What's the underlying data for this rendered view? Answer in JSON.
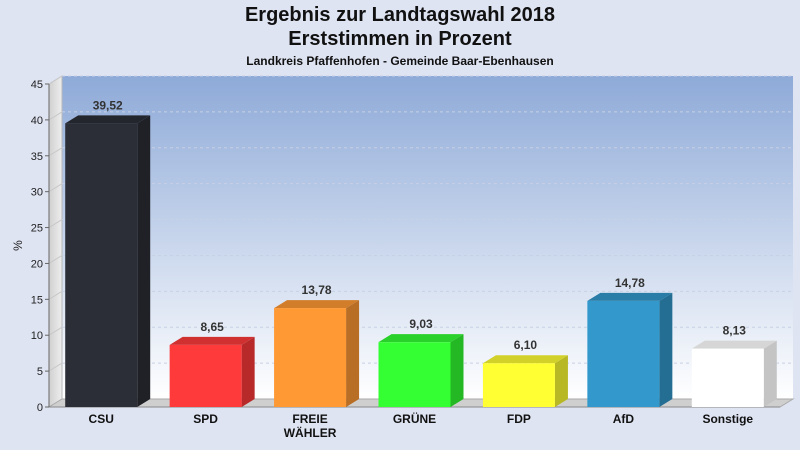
{
  "chart_data": {
    "type": "bar",
    "title": "Ergebnis zur Landtagswahl 2018",
    "subtitle": "Erststimmen in Prozent",
    "subsubtitle": "Landkreis Pfaffenhofen - Gemeinde Baar-Ebenhausen",
    "xlabel": "",
    "ylabel": "%",
    "ylim": [
      0,
      45
    ],
    "yticks": [
      0,
      5,
      10,
      15,
      20,
      25,
      30,
      35,
      40,
      45
    ],
    "grid": true,
    "categories": [
      "CSU",
      "SPD",
      "FREIE\nWÄHLER",
      "GRÜNE",
      "FDP",
      "AfD",
      "Sonstige"
    ],
    "values": [
      39.52,
      8.65,
      13.78,
      9.03,
      6.1,
      14.78,
      8.13
    ],
    "value_labels": [
      "39,52",
      "8,65",
      "13,78",
      "9,03",
      "6,10",
      "14,78",
      "8,13"
    ],
    "colors": [
      "#2b2e36",
      "#ff3a3a",
      "#ff9933",
      "#33ff33",
      "#ffff33",
      "#3399cc",
      "#ffffff"
    ]
  }
}
